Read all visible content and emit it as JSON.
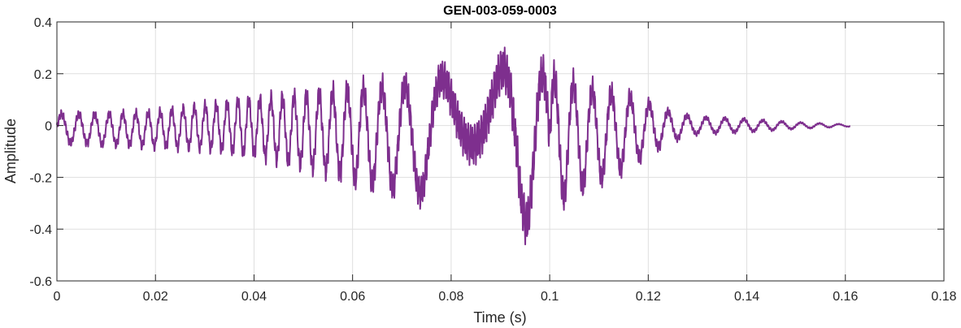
{
  "chart_data": {
    "type": "line",
    "title": "GEN-003-059-0003",
    "xlabel": "Time (s)",
    "ylabel": "Amplitude",
    "xlim": [
      0,
      0.18
    ],
    "ylim": [
      -0.6,
      0.4
    ],
    "xticks": [
      0,
      0.02,
      0.04,
      0.06,
      0.08,
      0.1,
      0.12,
      0.14,
      0.16,
      0.18
    ],
    "xtick_labels": [
      "0",
      "0.02",
      "0.04",
      "0.06",
      "0.08",
      "0.1",
      "0.12",
      "0.14",
      "0.16",
      "0.18"
    ],
    "yticks": [
      -0.6,
      -0.4,
      -0.2,
      0,
      0.2,
      0.4
    ],
    "ytick_labels": [
      "-0.6",
      "-0.4",
      "-0.2",
      "0",
      "0.2",
      "0.4"
    ],
    "grid": true,
    "line_color": "#7e2f8e",
    "series": [
      {
        "name": "",
        "color": "#7e2f8e",
        "x_start": 0,
        "x_end": 0.161,
        "envelope": {
          "t": [
            0,
            0.01,
            0.02,
            0.03,
            0.04,
            0.05,
            0.055,
            0.06,
            0.065,
            0.07,
            0.075,
            0.08,
            0.085,
            0.09,
            0.095,
            0.1,
            0.105,
            0.11,
            0.115,
            0.12,
            0.125,
            0.13,
            0.14,
            0.15,
            0.161
          ],
          "upper": [
            0.06,
            0.06,
            0.07,
            0.1,
            0.13,
            0.15,
            0.17,
            0.19,
            0.2,
            0.21,
            0.23,
            0.26,
            0.28,
            0.3,
            0.31,
            0.26,
            0.22,
            0.18,
            0.16,
            0.11,
            0.06,
            0.04,
            0.03,
            0.015,
            0.005
          ],
          "lower": [
            -0.08,
            -0.09,
            -0.1,
            -0.11,
            -0.14,
            -0.19,
            -0.22,
            -0.25,
            -0.28,
            -0.3,
            -0.33,
            -0.38,
            -0.41,
            -0.43,
            -0.46,
            -0.38,
            -0.3,
            -0.25,
            -0.2,
            -0.13,
            -0.07,
            -0.04,
            -0.03,
            -0.015,
            -0.005
          ]
        }
      }
    ]
  }
}
